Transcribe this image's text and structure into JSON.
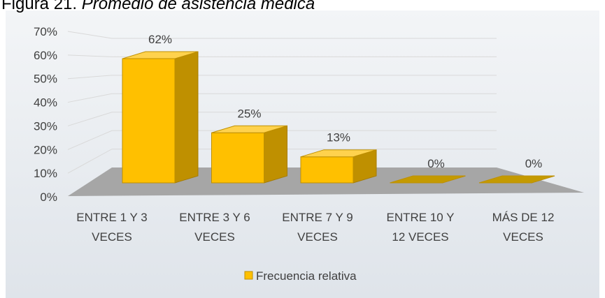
{
  "chart_data": {
    "type": "bar3d",
    "title_label": "Figura 21.",
    "title": "Promedio de asistencia médica",
    "categories": [
      "ENTRE 1 Y 3 VECES",
      "ENTRE 3 Y 6 VECES",
      "ENTRE 7 Y 9 VECES",
      "ENTRE 10 Y 12 VECES",
      "MÁS DE 12 VECES"
    ],
    "series": [
      {
        "name": "Frecuencia relativa",
        "color": "#FFC000",
        "values": [
          62,
          25,
          13,
          0,
          0
        ],
        "value_labels": [
          "62%",
          "25%",
          "13%",
          "0%",
          "0%"
        ]
      }
    ],
    "ylim": [
      0,
      70
    ],
    "yticks": [
      {
        "value": 0,
        "label": "0%"
      },
      {
        "value": 10,
        "label": "10%"
      },
      {
        "value": 20,
        "label": "20%"
      },
      {
        "value": 30,
        "label": "30%"
      },
      {
        "value": 40,
        "label": "40%"
      },
      {
        "value": 50,
        "label": "50%"
      },
      {
        "value": 60,
        "label": "60%"
      },
      {
        "value": 70,
        "label": "70%"
      }
    ],
    "grid": true,
    "legend": "bottom"
  }
}
